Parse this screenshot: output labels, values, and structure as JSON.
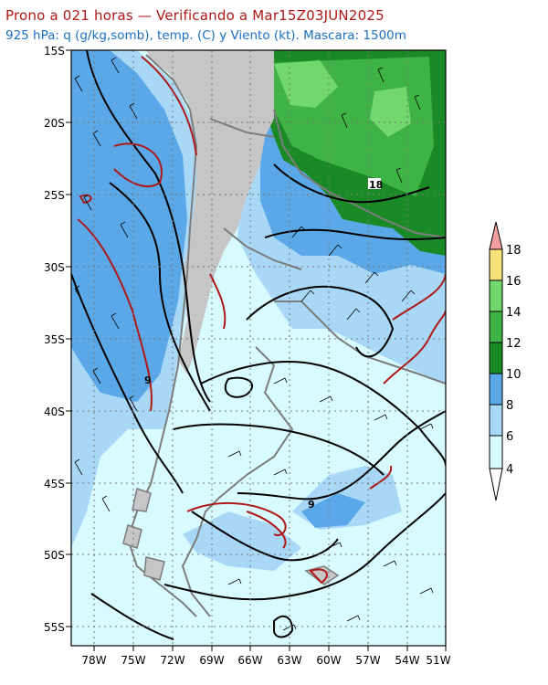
{
  "header": {
    "line1": "Prono a 021 horas — Verificando a Mar15Z03JUN2025",
    "line2": "925 hPa: q (g/kg,somb), temp. (C) y Viento (kt). Mascara: 1500m"
  },
  "axes": {
    "lat_labels": [
      "15S",
      "20S",
      "25S",
      "30S",
      "35S",
      "40S",
      "45S",
      "50S",
      "55S"
    ],
    "lon_labels": [
      "78W",
      "75W",
      "72W",
      "69W",
      "66W",
      "63W",
      "60W",
      "57W",
      "54W",
      "51W"
    ]
  },
  "contour_labels": [
    "18",
    "9",
    "9"
  ],
  "colorbar": {
    "labels": [
      "4",
      "6",
      "8",
      "10",
      "12",
      "14",
      "16",
      "18"
    ],
    "colors": {
      "4-6": "#d8fbff",
      "6-8": "#a9d8f7",
      "8-10": "#5aa8e8",
      "10-12": "#1a8a26",
      "12-14": "#3fb346",
      "14-16": "#72d86e",
      "16-18": "#f7e37a",
      "gt18": "#f0a0a0"
    }
  },
  "colors": {
    "terrain_mask": "#c6c6c6",
    "temperature_contour": "#000000",
    "freezing_contour": "#b01818",
    "coastline": "#7d7d7d"
  }
}
